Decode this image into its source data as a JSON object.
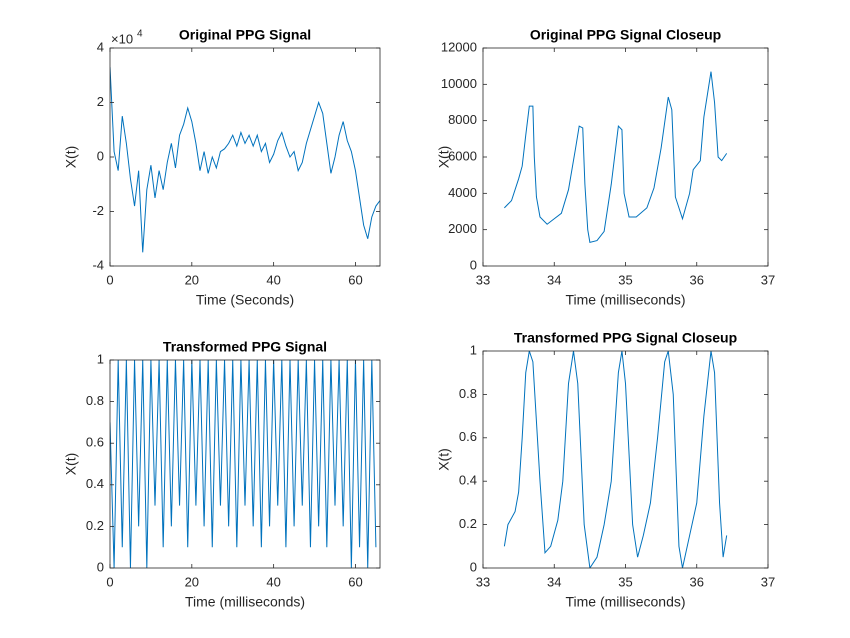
{
  "chart_data": [
    {
      "type": "line",
      "title": "Original PPG Signal",
      "xlabel": "Time (Seconds)",
      "ylabel": "X(t)",
      "yexponent_base": "×10",
      "yexponent": "4",
      "color": "#0072bd",
      "xlim": [
        0,
        66
      ],
      "xticks": [
        0,
        20,
        40,
        60
      ],
      "ylim": [
        -4,
        4
      ],
      "yticks": [
        -4,
        -2,
        0,
        2,
        4
      ],
      "x": [
        0,
        1,
        2,
        3,
        4,
        5,
        6,
        7,
        8,
        9,
        10,
        11,
        12,
        13,
        14,
        15,
        16,
        17,
        18,
        19,
        20,
        21,
        22,
        23,
        24,
        25,
        26,
        27,
        28,
        29,
        30,
        31,
        32,
        33,
        34,
        35,
        36,
        37,
        38,
        39,
        40,
        41,
        42,
        43,
        44,
        45,
        46,
        47,
        48,
        49,
        50,
        51,
        52,
        53,
        54,
        55,
        56,
        57,
        58,
        59,
        60,
        61,
        62,
        63,
        64,
        65,
        66
      ],
      "values": [
        3.3,
        0.2,
        -0.5,
        1.5,
        0.5,
        -0.8,
        -1.8,
        -0.5,
        -3.5,
        -1.2,
        -0.3,
        -1.5,
        -0.5,
        -1.2,
        -0.2,
        0.5,
        -0.4,
        0.8,
        1.2,
        1.8,
        1.3,
        0.5,
        -0.5,
        0.2,
        -0.6,
        0.0,
        -0.4,
        0.2,
        0.3,
        0.5,
        0.8,
        0.4,
        0.9,
        0.5,
        0.8,
        0.4,
        0.8,
        0.2,
        0.5,
        -0.2,
        0.1,
        0.6,
        0.9,
        0.4,
        0.0,
        0.2,
        -0.5,
        -0.2,
        0.5,
        1.0,
        1.5,
        2.0,
        1.6,
        0.5,
        -0.6,
        0.0,
        0.8,
        1.3,
        0.6,
        0.2,
        -0.5,
        -1.5,
        -2.5,
        -3.0,
        -2.2,
        -1.8,
        -1.6
      ]
    },
    {
      "type": "line",
      "title": "Original PPG Signal Closeup",
      "xlabel": "Time (milliseconds)",
      "ylabel": "X(t)",
      "color": "#0072bd",
      "xlim": [
        33,
        37
      ],
      "xticks": [
        33,
        34,
        35,
        36,
        37
      ],
      "ylim": [
        0,
        12000
      ],
      "yticks": [
        0,
        2000,
        4000,
        6000,
        8000,
        10000,
        12000
      ],
      "x": [
        33.3,
        33.4,
        33.5,
        33.55,
        33.6,
        33.65,
        33.7,
        33.72,
        33.75,
        33.8,
        33.9,
        34.0,
        34.1,
        34.2,
        34.3,
        34.35,
        34.4,
        34.43,
        34.47,
        34.5,
        34.6,
        34.7,
        34.8,
        34.9,
        34.95,
        34.98,
        35.05,
        35.15,
        35.3,
        35.4,
        35.5,
        35.6,
        35.65,
        35.7,
        35.8,
        35.9,
        35.95,
        36.05,
        36.1,
        36.2,
        36.25,
        36.3,
        36.35,
        36.42
      ],
      "values": [
        3200,
        3600,
        4800,
        5500,
        7200,
        8800,
        8800,
        6000,
        3800,
        2700,
        2300,
        2600,
        2900,
        4200,
        6500,
        7700,
        7600,
        4500,
        2000,
        1300,
        1400,
        1900,
        4500,
        7700,
        7500,
        4000,
        2700,
        2700,
        3200,
        4300,
        6500,
        9300,
        8600,
        3800,
        2600,
        4000,
        5300,
        5800,
        8200,
        10700,
        9000,
        6000,
        5800,
        6200
      ]
    },
    {
      "type": "line",
      "title": "Transformed PPG Signal",
      "xlabel": "Time (milliseconds)",
      "ylabel": "X(t)",
      "color": "#0072bd",
      "xlim": [
        0,
        66
      ],
      "xticks": [
        0,
        20,
        40,
        60
      ],
      "ylim": [
        0,
        1
      ],
      "yticks": [
        0,
        0.2,
        0.4,
        0.6,
        0.8,
        1
      ],
      "x": [
        0,
        1,
        2,
        3,
        4,
        5,
        6,
        7,
        8,
        9,
        10,
        11,
        12,
        13,
        14,
        15,
        16,
        17,
        18,
        19,
        20,
        21,
        22,
        23,
        24,
        25,
        26,
        27,
        28,
        29,
        30,
        31,
        32,
        33,
        34,
        35,
        36,
        37,
        38,
        39,
        40,
        41,
        42,
        43,
        44,
        45,
        46,
        47,
        48,
        49,
        50,
        51,
        52,
        53,
        54,
        55,
        56,
        57,
        58,
        59,
        60,
        61,
        62,
        63,
        64,
        65
      ],
      "values": [
        0.7,
        0,
        1,
        0.1,
        1,
        0,
        1,
        0.2,
        1,
        0,
        1,
        0.3,
        1,
        0.1,
        1,
        0.2,
        1,
        0.3,
        1,
        0.1,
        1,
        0.3,
        1,
        0.2,
        1,
        0.1,
        1,
        0.3,
        1,
        0.2,
        1,
        0.1,
        1,
        0.3,
        1,
        0.2,
        1,
        0.1,
        1,
        0.2,
        1,
        0.3,
        1,
        0.1,
        1,
        0.2,
        1,
        0.3,
        1,
        0.1,
        1,
        0.2,
        1,
        0.1,
        1,
        0.3,
        1,
        0.2,
        1,
        0,
        1,
        0.1,
        1,
        0,
        1,
        0.1
      ]
    },
    {
      "type": "line",
      "title": "Transformed PPG Signal Closeup",
      "xlabel": "Time (milliseconds)",
      "ylabel": "X(t)",
      "color": "#0072bd",
      "xlim": [
        33,
        37
      ],
      "xticks": [
        33,
        34,
        35,
        36,
        37
      ],
      "ylim": [
        0,
        1
      ],
      "yticks": [
        0,
        0.2,
        0.4,
        0.6,
        0.8,
        1
      ],
      "x": [
        33.3,
        33.35,
        33.45,
        33.5,
        33.55,
        33.6,
        33.65,
        33.7,
        33.8,
        33.87,
        33.95,
        34.05,
        34.12,
        34.2,
        34.27,
        34.33,
        34.42,
        34.5,
        34.6,
        34.7,
        34.8,
        34.9,
        34.95,
        35.0,
        35.1,
        35.17,
        35.25,
        35.35,
        35.45,
        35.55,
        35.6,
        35.67,
        35.75,
        35.8,
        35.9,
        36.0,
        36.1,
        36.2,
        36.25,
        36.32,
        36.37,
        36.42
      ],
      "values": [
        0.1,
        0.2,
        0.26,
        0.35,
        0.6,
        0.9,
        1.0,
        0.95,
        0.4,
        0.07,
        0.1,
        0.22,
        0.4,
        0.85,
        1.0,
        0.85,
        0.2,
        0.0,
        0.05,
        0.2,
        0.4,
        0.9,
        1.0,
        0.85,
        0.2,
        0.05,
        0.15,
        0.3,
        0.6,
        0.95,
        1.0,
        0.8,
        0.1,
        0.0,
        0.15,
        0.3,
        0.7,
        1.0,
        0.9,
        0.3,
        0.05,
        0.15
      ]
    }
  ]
}
